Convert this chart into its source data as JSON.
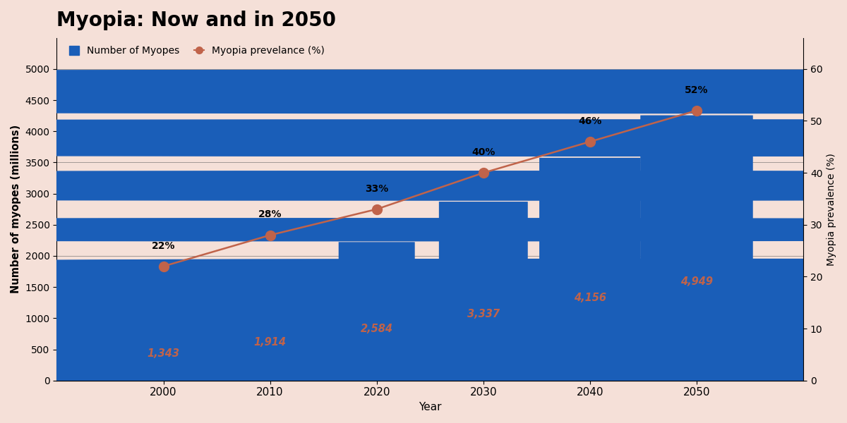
{
  "years": [
    2000,
    2010,
    2020,
    2030,
    2040,
    2050
  ],
  "myopes": [
    1343,
    1914,
    2584,
    3337,
    4156,
    4949
  ],
  "prevalence": [
    22,
    28,
    33,
    40,
    46,
    52
  ],
  "figure_color": "#1a5eb8",
  "label_color": "#c0634a",
  "line_color": "#c0634a",
  "background_color": "#f5e0d8",
  "title": "Myopia: Now and in 2050",
  "xlabel": "Year",
  "ylabel_left": "Number of myopes (millions)",
  "ylabel_right": "Myopia prevalence (%)",
  "ylim_left": [
    0,
    5500
  ],
  "ylim_right": [
    0,
    66
  ],
  "yticks_left": [
    0,
    500,
    1000,
    1500,
    2000,
    2500,
    3000,
    3500,
    4000,
    4500,
    5000
  ],
  "yticks_right": [
    0,
    10,
    20,
    30,
    40,
    50,
    60
  ],
  "legend_bar_label": "Number of Myopes",
  "legend_line_label": "Myopia prevelance (%)"
}
